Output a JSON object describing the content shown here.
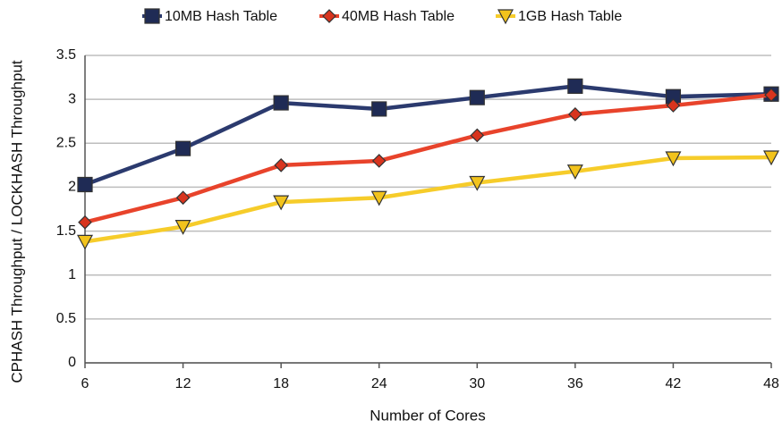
{
  "chart_data": {
    "type": "line",
    "x": [
      6,
      12,
      18,
      24,
      30,
      36,
      42,
      48
    ],
    "xlim": [
      6,
      48
    ],
    "xticks": [
      6,
      12,
      18,
      24,
      30,
      36,
      42,
      48
    ],
    "ylim": [
      0,
      3.5
    ],
    "yticks": [
      0,
      0.5,
      1,
      1.5,
      2,
      2.5,
      3,
      3.5
    ],
    "xlabel": "Number of Cores",
    "ylabel": "CPHASH Throughput / LOCKHASH Throughput",
    "grid": true,
    "legend": "top",
    "series": [
      {
        "name": "10MB Hash Table",
        "color": "#2b3a6e",
        "marker": "square",
        "marker_color": "#1f2b55",
        "values": [
          2.03,
          2.44,
          2.96,
          2.89,
          3.02,
          3.15,
          3.03,
          3.06
        ]
      },
      {
        "name": "40MB Hash Table",
        "color": "#e8432b",
        "marker": "diamond",
        "marker_color": "#d8341e",
        "values": [
          1.6,
          1.88,
          2.25,
          2.3,
          2.59,
          2.83,
          2.93,
          3.05
        ]
      },
      {
        "name": "1GB Hash Table",
        "color": "#f6cc2a",
        "marker": "triangle-down",
        "marker_color": "#f2c31c",
        "values": [
          1.38,
          1.55,
          1.83,
          1.88,
          2.05,
          2.18,
          2.33,
          2.34
        ]
      }
    ]
  }
}
